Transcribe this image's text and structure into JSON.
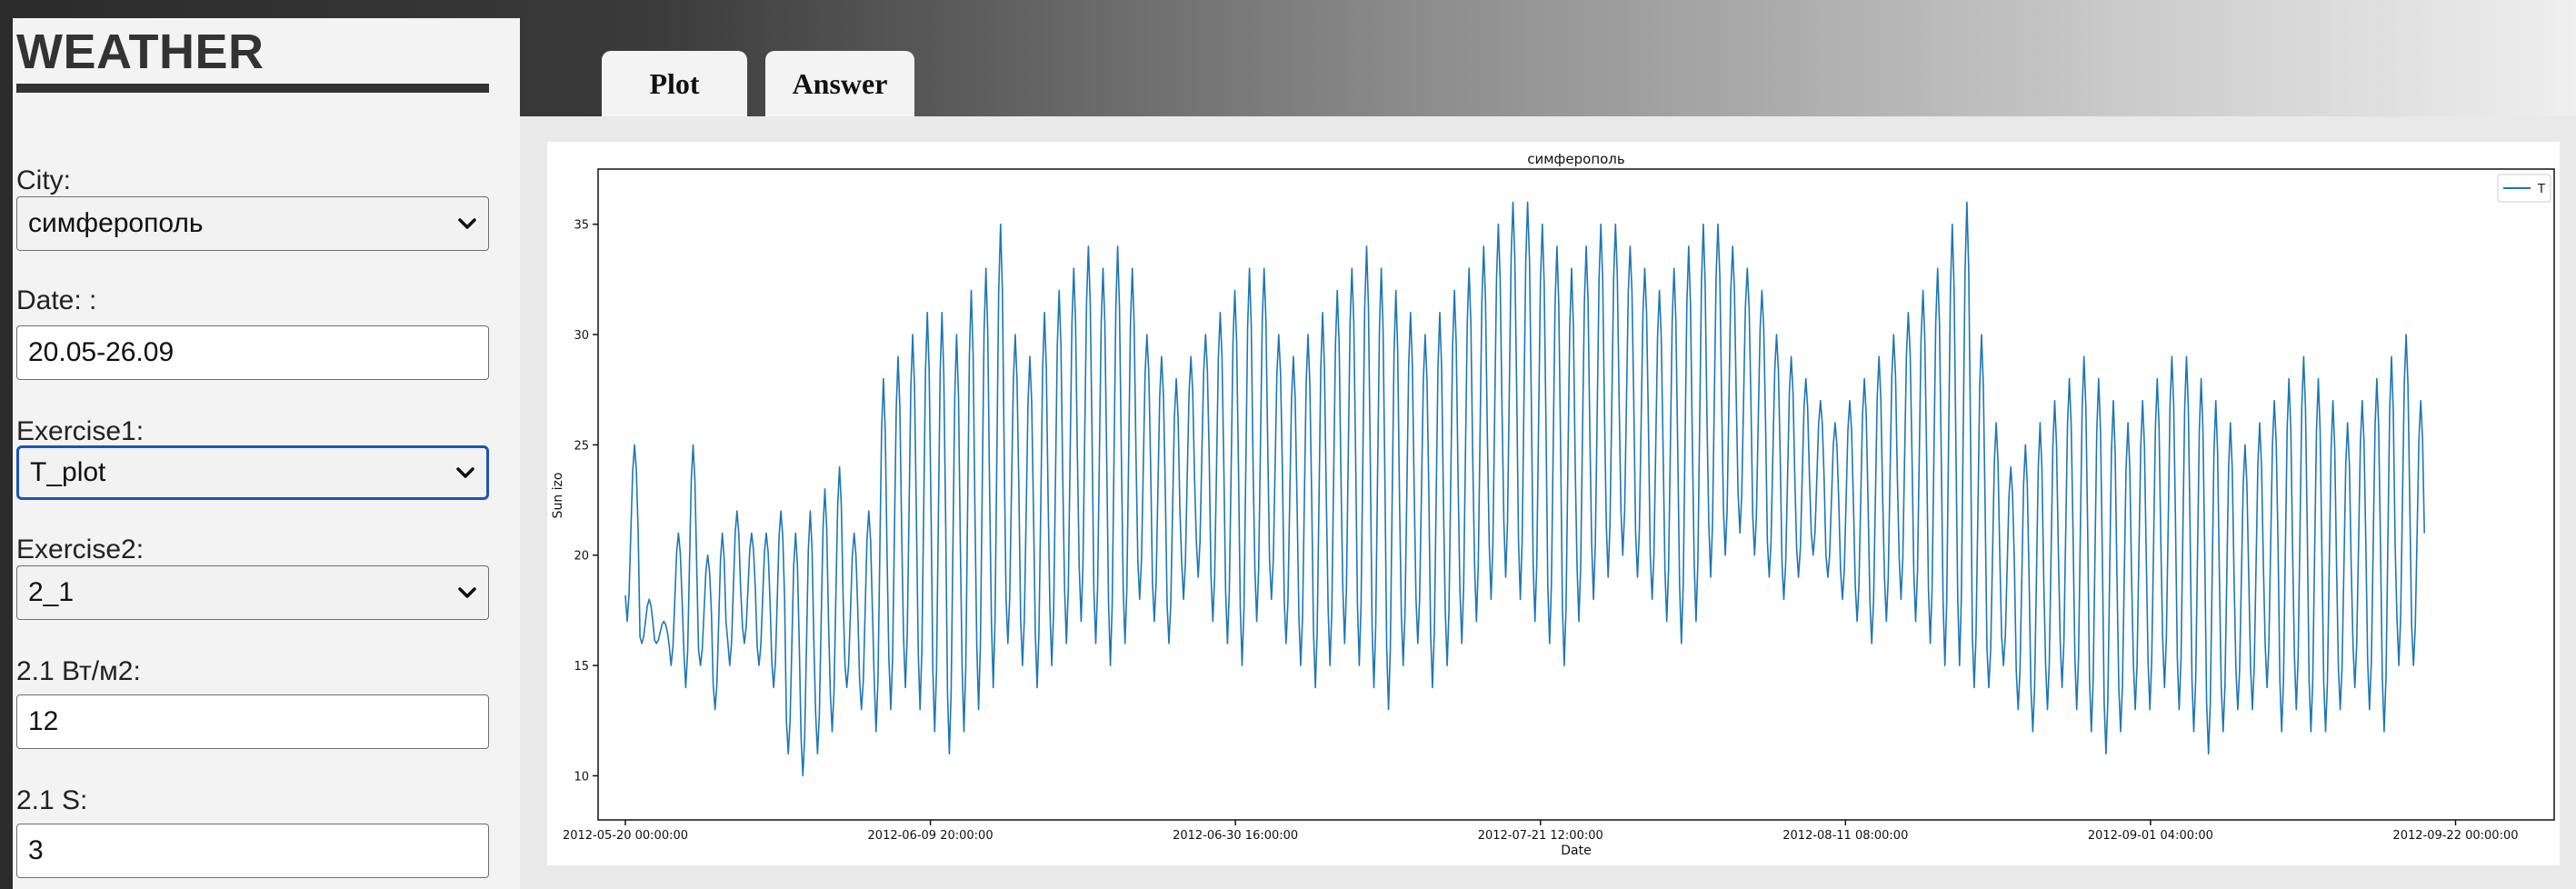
{
  "app": {
    "title": "WEATHER"
  },
  "form": {
    "city": {
      "label": "City:",
      "value": "симферополь"
    },
    "date": {
      "label": "Date: :",
      "value": "20.05-26.09"
    },
    "exercise1": {
      "label": "Exercise1:",
      "value": "T_plot"
    },
    "exercise2": {
      "label": "Exercise2:",
      "value": "2_1"
    },
    "power": {
      "label": "2.1 Вт/м2:",
      "value": "12"
    },
    "area": {
      "label": "2.1 S:",
      "value": "3"
    }
  },
  "tabs": [
    {
      "label": "Plot",
      "active": true
    },
    {
      "label": "Answer",
      "active": false
    }
  ],
  "colors": {
    "series": "#1f77b4",
    "focus": "#1a55b8",
    "sidebar": "#f3f3f3"
  },
  "chart_data": {
    "type": "line",
    "title": "симферополь",
    "xlabel": "Date",
    "ylabel": "Sun izo",
    "x_ticks": [
      "2012-05-20 00:00:00",
      "2012-06-09 20:00:00",
      "2012-06-30 16:00:00",
      "2012-07-21 12:00:00",
      "2012-08-11 08:00:00",
      "2012-09-01 04:00:00",
      "2012-09-22 00:00:00"
    ],
    "y_ticks": [
      10,
      15,
      20,
      25,
      30,
      35
    ],
    "ylim": [
      8,
      37.5
    ],
    "x_start": "2012-05-20 00:00:00",
    "x_end": "2012-09-26 21:00:00",
    "series": [
      {
        "name": "T",
        "daily_min": [
          17,
          16,
          16,
          15,
          14,
          15,
          13,
          15,
          16,
          15,
          14,
          11,
          10,
          11,
          12,
          14,
          13,
          12,
          13,
          14,
          13,
          12,
          11,
          12,
          13,
          14,
          16,
          15,
          14,
          15,
          16,
          17,
          16,
          15,
          16,
          18,
          17,
          16,
          18,
          19,
          17,
          16,
          15,
          17,
          18,
          16,
          15,
          14,
          15,
          16,
          15,
          14,
          13,
          15,
          16,
          14,
          15,
          16,
          17,
          18,
          19,
          18,
          17,
          16,
          15,
          17,
          18,
          19,
          20,
          19,
          18,
          17,
          16,
          17,
          19,
          20,
          21,
          20,
          19,
          18,
          19,
          20,
          19,
          18,
          17,
          16,
          17,
          18,
          17,
          16,
          15,
          15,
          14,
          14,
          15,
          13,
          12,
          13,
          14,
          13,
          12,
          11,
          12,
          13,
          13,
          14,
          13,
          12,
          11,
          12,
          13,
          13,
          14,
          12,
          13,
          12,
          12,
          13,
          14,
          13,
          12,
          15,
          15
        ],
        "daily_max": [
          25,
          18,
          17,
          21,
          25,
          20,
          21,
          22,
          21,
          21,
          22,
          21,
          22,
          23,
          24,
          21,
          22,
          28,
          29,
          30,
          31,
          31,
          30,
          32,
          33,
          35,
          30,
          29,
          31,
          32,
          33,
          34,
          33,
          34,
          33,
          30,
          29,
          28,
          29,
          30,
          31,
          32,
          33,
          33,
          30,
          29,
          30,
          31,
          32,
          33,
          34,
          33,
          32,
          31,
          30,
          31,
          32,
          33,
          34,
          35,
          36,
          36,
          35,
          34,
          33,
          34,
          35,
          35,
          34,
          33,
          32,
          33,
          34,
          35,
          35,
          34,
          33,
          32,
          30,
          29,
          28,
          27,
          26,
          27,
          28,
          29,
          30,
          31,
          32,
          33,
          35,
          36,
          30,
          26,
          24,
          25,
          26,
          27,
          28,
          29,
          28,
          27,
          26,
          27,
          28,
          29,
          29,
          28,
          27,
          26,
          25,
          26,
          27,
          28,
          29,
          28,
          27,
          26,
          27,
          28,
          29,
          30,
          27
        ]
      }
    ],
    "legend": "top-right",
    "grid": false
  }
}
